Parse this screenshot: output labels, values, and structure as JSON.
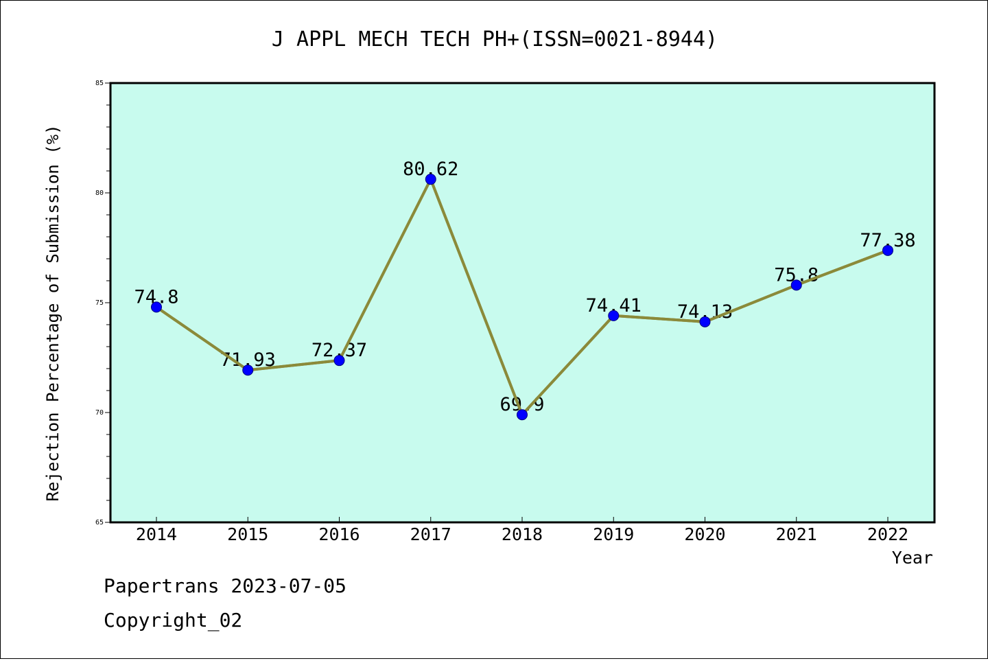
{
  "chart_data": {
    "type": "line",
    "title": "J APPL MECH TECH PH+(ISSN=0021-8944)",
    "xlabel": "Year",
    "ylabel": "Rejection Percentage of Submission (%)",
    "categories": [
      "2014",
      "2015",
      "2016",
      "2017",
      "2018",
      "2019",
      "2020",
      "2021",
      "2022"
    ],
    "series": [
      {
        "values": [
          74.8,
          71.93,
          72.37,
          80.62,
          69.9,
          74.41,
          74.13,
          75.8,
          77.38
        ],
        "data_labels": [
          "74.8",
          "71.93",
          "72.37",
          "80.62",
          "69.9",
          "74.41",
          "74.13",
          "75.8",
          "77.38"
        ]
      }
    ],
    "ylim": [
      65,
      85
    ],
    "yticks": [
      "65",
      "70",
      "75",
      "80",
      "85"
    ],
    "grid": false,
    "legend": "none",
    "colors": {
      "plot_background": "#c8fbee",
      "line": "#8b8a3a",
      "marker": "#0000ff"
    }
  },
  "footer": {
    "line1": "Papertrans 2023-07-05",
    "line2": "Copyright_02"
  }
}
